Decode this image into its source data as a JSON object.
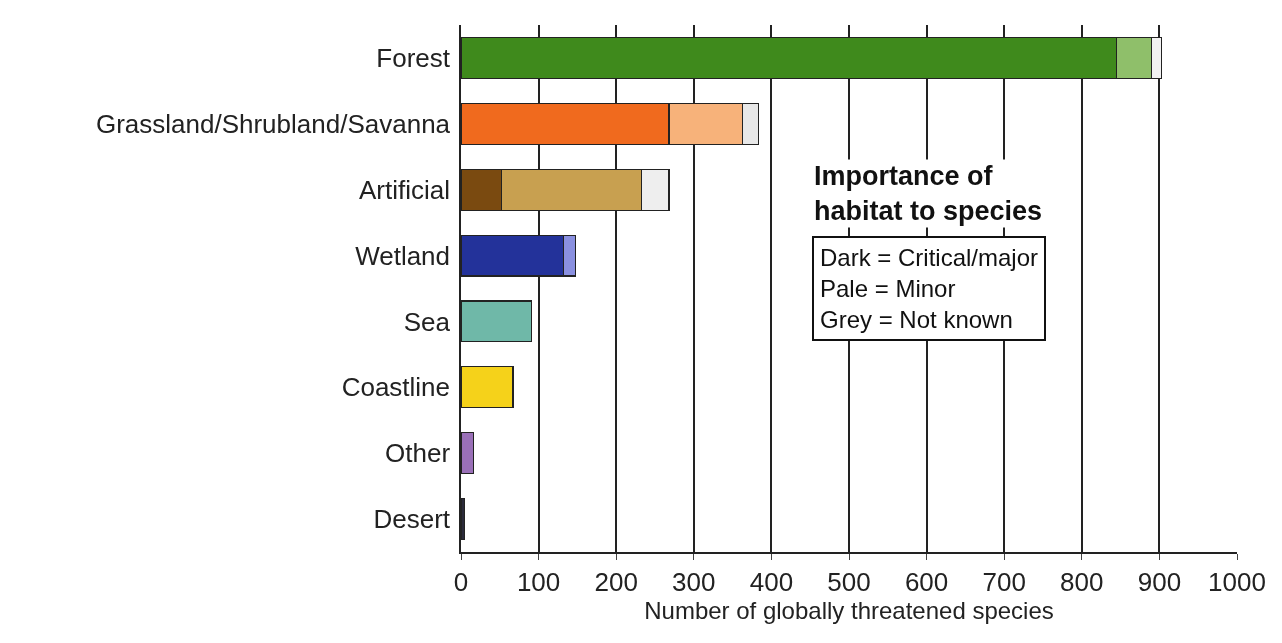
{
  "chart_data": {
    "type": "bar",
    "orientation": "horizontal",
    "stacked": true,
    "categories": [
      "Forest",
      "Grassland/Shrubland/Savanna",
      "Artificial",
      "Wetland",
      "Sea",
      "Coastline",
      "Other",
      "Desert"
    ],
    "series": [
      {
        "colors": [
          "#3f8a1c",
          "#f06a1e",
          "#7a4a10",
          "#23329a",
          "#6fb8a8",
          "#f5d21a",
          "#9a70b8",
          "#2a2a3a"
        ],
        "values": [
          845,
          268,
          52,
          132,
          91,
          67,
          16,
          4
        ]
      },
      {
        "colors": [
          "#8fbf6a",
          "#f7b27a",
          "#c8a050",
          "#8a90e0",
          "#6fb8a8",
          "#f5d21a",
          "#9a70b8",
          "#2a2a3a"
        ],
        "values": [
          45,
          95,
          181,
          16,
          null,
          null,
          null,
          null
        ]
      },
      {
        "colors": [
          "#f2f2f2",
          "#e8e8e8",
          "#eeeeee",
          "#eeeeee",
          "#eeeeee",
          "#eeeeee",
          "#eeeeee",
          "#eeeeee"
        ],
        "values": [
          13,
          20,
          35,
          null,
          null,
          null,
          null,
          null
        ]
      }
    ],
    "xlabel": "Number of globally threatened species",
    "xlim": [
      0,
      1000
    ],
    "xticks": [
      0,
      100,
      200,
      300,
      400,
      500,
      600,
      700,
      800,
      900,
      1000
    ],
    "grid": "x",
    "annotations": [
      "Importance of habitat to species",
      "Dark = Critical/major",
      "Pale = Minor",
      "Grey = Not known"
    ]
  }
}
